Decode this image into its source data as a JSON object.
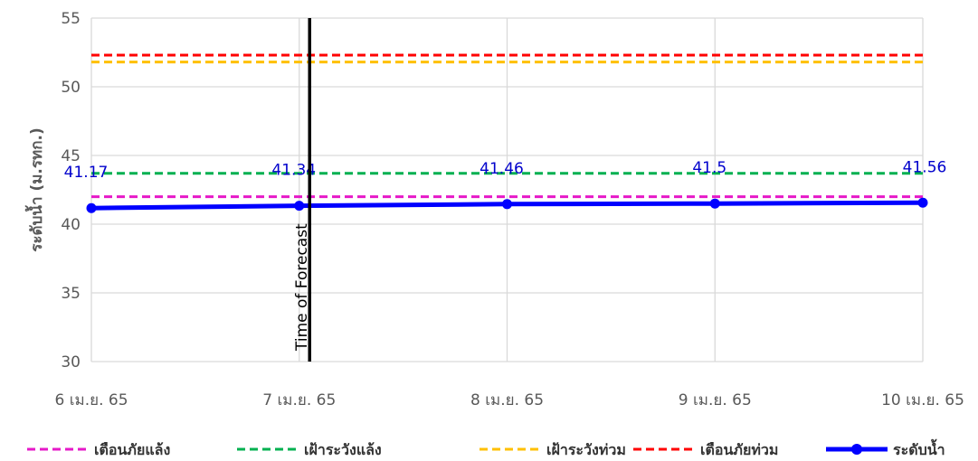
{
  "chart_data": {
    "type": "line",
    "categories": [
      "6 เม.ย. 65",
      "7 เม.ย. 65",
      "8 เม.ย. 65",
      "9 เม.ย. 65",
      "10 เม.ย. 65"
    ],
    "ylabel": "ระดับน้ำ (ม.รทก.)",
    "ylim": [
      30,
      55
    ],
    "yticks": [
      30,
      35,
      40,
      45,
      50,
      55
    ],
    "grid": true,
    "legend_position": "bottom",
    "series": [
      {
        "name": "ระดับน้ำ",
        "values": [
          41.17,
          41.34,
          41.46,
          41.5,
          41.56
        ],
        "color": "#0000ff",
        "style": "solid-markers",
        "data_labels": [
          "41.17",
          "41.34",
          "41.46",
          "41.5",
          "41.56"
        ]
      }
    ],
    "reference_lines": [
      {
        "name": "เตือนภัยแล้ง",
        "value": 42.0,
        "color": "#e619c8",
        "style": "dashed"
      },
      {
        "name": "เฝ้าระวังแล้ง",
        "value": 43.7,
        "color": "#00b050",
        "style": "dashed"
      },
      {
        "name": "เฝ้าระวังท่วม",
        "value": 51.8,
        "color": "#ffc000",
        "style": "dashed"
      },
      {
        "name": "เตือนภัยท่วม",
        "value": 52.3,
        "color": "#ff0000",
        "style": "dashed"
      }
    ],
    "annotations": [
      {
        "text": "Time of Forecast",
        "x_index": 1.05,
        "color": "#000000"
      }
    ]
  }
}
